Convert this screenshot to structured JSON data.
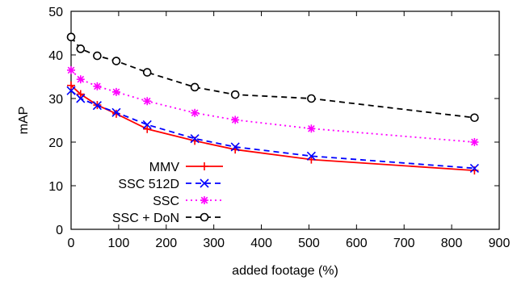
{
  "chart_data": {
    "type": "line",
    "xlabel": "added footage (%)",
    "ylabel": "mAP",
    "xlim": [
      0,
      900
    ],
    "ylim": [
      0,
      50
    ],
    "xticks": [
      "0",
      "100",
      "200",
      "300",
      "400",
      "500",
      "600",
      "700",
      "800",
      "900"
    ],
    "yticks": [
      "0",
      "10",
      "20",
      "30",
      "40",
      "50"
    ],
    "grid": false,
    "legend_position": "bottom-left",
    "series": [
      {
        "name": "MMV",
        "color": "#ff0000",
        "dash": "solid",
        "marker": "plus",
        "points": [
          [
            0,
            33
          ],
          [
            20,
            31
          ],
          [
            55,
            28.5
          ],
          [
            95,
            26.5
          ],
          [
            160,
            23
          ],
          [
            260,
            20.3
          ],
          [
            345,
            18.3
          ],
          [
            505,
            16
          ],
          [
            848,
            13.5
          ]
        ]
      },
      {
        "name": "SSC 512D",
        "color": "#0000ff",
        "dash": "dashed",
        "marker": "x",
        "points": [
          [
            0,
            31.8
          ],
          [
            20,
            30
          ],
          [
            55,
            28.4
          ],
          [
            95,
            26.8
          ],
          [
            160,
            24
          ],
          [
            260,
            20.8
          ],
          [
            345,
            18.9
          ],
          [
            505,
            16.8
          ],
          [
            848,
            14
          ]
        ]
      },
      {
        "name": "SSC",
        "color": "#ff00ff",
        "dash": "dotted",
        "marker": "star",
        "points": [
          [
            0,
            36.5
          ],
          [
            20,
            34.4
          ],
          [
            55,
            32.8
          ],
          [
            95,
            31.5
          ],
          [
            160,
            29.4
          ],
          [
            260,
            26.7
          ],
          [
            345,
            25.1
          ],
          [
            505,
            23.1
          ],
          [
            848,
            20
          ]
        ]
      },
      {
        "name": "SSC + DoN",
        "color": "#000000",
        "dash": "dashed",
        "marker": "circle",
        "points": [
          [
            0,
            44.1
          ],
          [
            20,
            41.4
          ],
          [
            55,
            39.8
          ],
          [
            95,
            38.6
          ],
          [
            160,
            36
          ],
          [
            260,
            32.6
          ],
          [
            345,
            30.9
          ],
          [
            505,
            30
          ],
          [
            848,
            25.6
          ]
        ]
      }
    ]
  }
}
